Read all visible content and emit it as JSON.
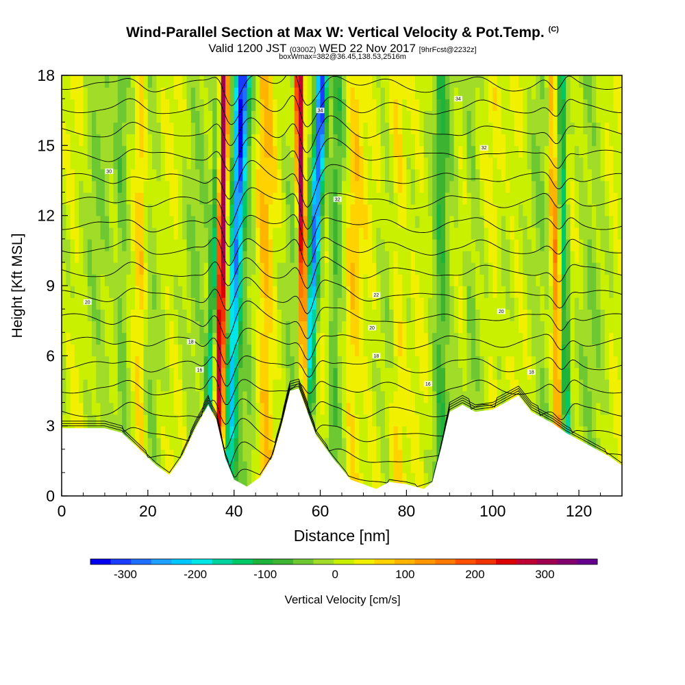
{
  "header": {
    "title": "Wind-Parallel Section at Max W: Vertical Velocity & Pot.Temp.",
    "title_mark": "(C)",
    "valid_prefix": "Valid 1200 JST",
    "valid_utc": "(0300Z)",
    "valid_date": "WED 22 Nov 2017",
    "forecast_tag": "[9hrFcst@2232z]",
    "box_info": "boxWmax=382@36.45,138.53,2516m"
  },
  "chart_data": {
    "type": "heatmap",
    "title": "Wind-Parallel Section at Max W: Vertical Velocity & Pot.Temp.",
    "xlabel": "Distance [nm]",
    "ylabel": "Height [Kft MSL]",
    "xlim": [
      0,
      130
    ],
    "ylim": [
      0,
      18
    ],
    "x_ticks": [
      0,
      20,
      40,
      60,
      80,
      100,
      120
    ],
    "y_ticks": [
      0,
      3,
      6,
      9,
      12,
      15,
      18
    ],
    "grid": false,
    "colorbar": {
      "label": "Vertical Velocity [cm/s]",
      "ticks": [
        -300,
        -200,
        -100,
        0,
        100,
        200,
        300
      ],
      "min": -350,
      "max": 375,
      "colors": [
        "#0000ee",
        "#1a3cff",
        "#1e6fff",
        "#1ea0ff",
        "#00c8ff",
        "#00e6e6",
        "#00d2a0",
        "#00c864",
        "#1eb43c",
        "#3cb432",
        "#6ec832",
        "#a0dc28",
        "#c8f000",
        "#f0f000",
        "#ffd200",
        "#ffb400",
        "#ff9600",
        "#ff7800",
        "#ff5000",
        "#f03200",
        "#dc0000",
        "#be0032",
        "#a00050",
        "#82006e",
        "#64008c"
      ]
    },
    "terrain_kft": [
      [
        0,
        2.9
      ],
      [
        10,
        2.9
      ],
      [
        14,
        2.7
      ],
      [
        18,
        2.0
      ],
      [
        22,
        1.3
      ],
      [
        25,
        0.9
      ],
      [
        28,
        1.7
      ],
      [
        31,
        2.9
      ],
      [
        34,
        3.9
      ],
      [
        36,
        3.2
      ],
      [
        38,
        1.6
      ],
      [
        40,
        0.7
      ],
      [
        43,
        0.4
      ],
      [
        46,
        0.8
      ],
      [
        49,
        1.7
      ],
      [
        51,
        3.0
      ],
      [
        53,
        4.5
      ],
      [
        55,
        4.6
      ],
      [
        57,
        3.6
      ],
      [
        59,
        2.6
      ],
      [
        63,
        1.6
      ],
      [
        67,
        0.7
      ],
      [
        70,
        0.5
      ],
      [
        73,
        0.3
      ],
      [
        76,
        0.6
      ],
      [
        80,
        0.5
      ],
      [
        84,
        0.3
      ],
      [
        86,
        0.6
      ],
      [
        88,
        2.0
      ],
      [
        90,
        3.6
      ],
      [
        93,
        3.9
      ],
      [
        96,
        3.6
      ],
      [
        100,
        3.7
      ],
      [
        103,
        4.0
      ],
      [
        106,
        4.3
      ],
      [
        109,
        3.6
      ],
      [
        111,
        3.4
      ],
      [
        114,
        3.1
      ],
      [
        117,
        2.7
      ],
      [
        120,
        2.4
      ],
      [
        124,
        2.0
      ],
      [
        127,
        1.7
      ],
      [
        130,
        1.3
      ]
    ],
    "series": [
      {
        "name": "updraft",
        "x_base": 36.5,
        "x_top": 37.5,
        "w_max": 380,
        "width_nm": 1.0
      },
      {
        "name": "downdraft",
        "x_base": 38.5,
        "x_top": 42.0,
        "w_max": -320,
        "width_nm": 1.6
      },
      {
        "name": "downdraft",
        "x_base": 56.0,
        "x_top": 60.5,
        "w_max": -340,
        "width_nm": 1.4
      },
      {
        "name": "updraft",
        "x_base": 57.0,
        "x_top": 55.0,
        "w_max": 360,
        "width_nm": 0.9
      },
      {
        "name": "downdraft",
        "x_base": 33.5,
        "x_top": 37.0,
        "w_max": -160,
        "width_nm": 1.0
      },
      {
        "name": "downdraft",
        "x_base": 117.5,
        "x_top": 116.0,
        "w_max": -160,
        "width_nm": 0.9
      },
      {
        "name": "updraft",
        "x_base": 115.5,
        "x_top": 113.5,
        "w_max": 120,
        "width_nm": 1.0
      },
      {
        "name": "updraft",
        "x_base": 18.0,
        "x_top": 18.5,
        "w_max": 80,
        "width_nm": 1.5
      },
      {
        "name": "updraft",
        "x_base": 47.0,
        "x_top": 47.0,
        "w_max": 70,
        "width_nm": 2.0
      },
      {
        "name": "updraft",
        "x_base": 67.0,
        "x_top": 68.0,
        "w_max": 80,
        "width_nm": 2.0
      },
      {
        "name": "updraft",
        "x_base": 78.0,
        "x_top": 78.0,
        "w_max": 70,
        "width_nm": 1.8
      },
      {
        "name": "updraft",
        "x_base": 100.0,
        "x_top": 100.0,
        "w_max": 60,
        "width_nm": 2.0
      },
      {
        "name": "downdraft",
        "x_base": 14.0,
        "x_top": 14.0,
        "w_max": -70,
        "width_nm": 1.5
      },
      {
        "name": "downdraft",
        "x_base": 62.5,
        "x_top": 64.0,
        "w_max": -60,
        "width_nm": 1.2
      },
      {
        "name": "downdraft",
        "x_base": 88.0,
        "x_top": 88.0,
        "w_max": -60,
        "width_nm": 1.5
      },
      {
        "name": "downdraft",
        "x_base": 95.0,
        "x_top": 95.0,
        "w_max": -50,
        "width_nm": 1.5
      }
    ],
    "theta_levels_c": [
      0,
      2,
      4,
      6,
      8,
      10,
      12,
      14,
      16,
      18,
      20,
      22,
      24,
      26,
      28,
      30,
      32,
      34
    ],
    "theta_labels": [
      {
        "x": 6,
        "y": 8.3,
        "text": "20"
      },
      {
        "x": 11,
        "y": 13.9,
        "text": "30"
      },
      {
        "x": 30,
        "y": 6.6,
        "text": "18"
      },
      {
        "x": 32,
        "y": 5.4,
        "text": "16"
      },
      {
        "x": 60,
        "y": 16.5,
        "text": "34"
      },
      {
        "x": 64,
        "y": 12.7,
        "text": "32"
      },
      {
        "x": 73,
        "y": 8.6,
        "text": "22"
      },
      {
        "x": 72,
        "y": 7.2,
        "text": "20"
      },
      {
        "x": 73,
        "y": 6.0,
        "text": "18"
      },
      {
        "x": 85,
        "y": 4.8,
        "text": "16"
      },
      {
        "x": 92,
        "y": 17.0,
        "text": "34"
      },
      {
        "x": 98,
        "y": 14.9,
        "text": "32"
      },
      {
        "x": 102,
        "y": 7.9,
        "text": "20"
      },
      {
        "x": 109,
        "y": 5.3,
        "text": "18"
      }
    ]
  }
}
